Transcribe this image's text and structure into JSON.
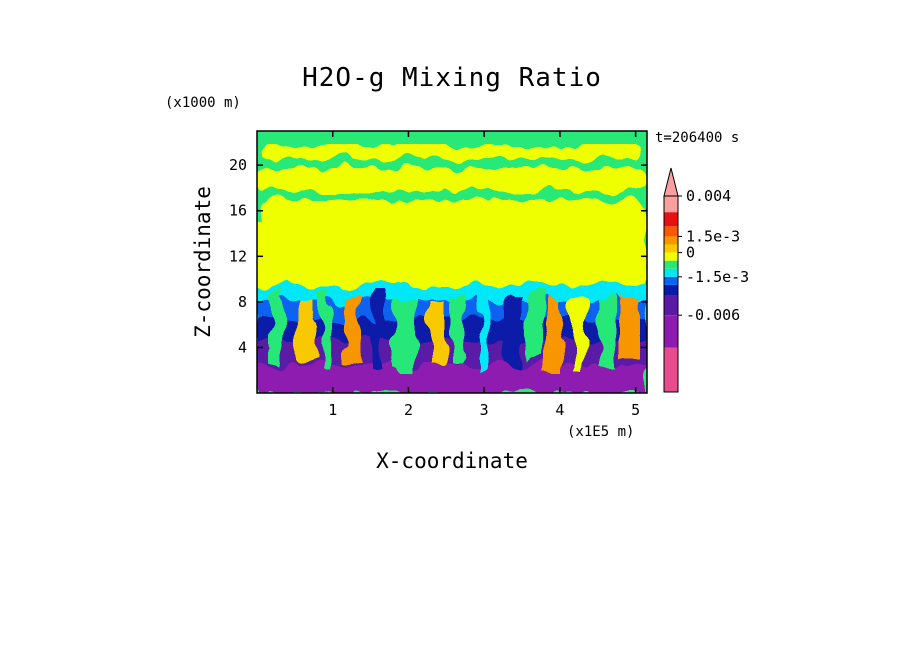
{
  "chart_data": {
    "type": "heatmap",
    "title": "H2O-g Mixing Ratio",
    "xlabel": "X-coordinate",
    "ylabel": "Z-coordinate",
    "x_unit_label": "(x1E5 m)",
    "y_unit_label": "(x1000 m)",
    "time_label": "t=206400 s",
    "xlim": [
      0,
      5.15
    ],
    "ylim": [
      0,
      23
    ],
    "xticks": [
      1,
      2,
      3,
      4,
      5
    ],
    "yticks": [
      4,
      8,
      12,
      16,
      20
    ],
    "colorbar": {
      "labels": [
        "0.004",
        "1.5e-3",
        "0",
        "-1.5e-3",
        "-0.006"
      ],
      "colors": [
        "#e84c8c",
        "#8e1bb0",
        "#5a1aa6",
        "#0a1aa8",
        "#0a64f0",
        "#00e8f8",
        "#28e878",
        "#f0ff00",
        "#f8c800",
        "#f89600",
        "#f85a00",
        "#e81010",
        "#f8a0a0"
      ]
    }
  }
}
